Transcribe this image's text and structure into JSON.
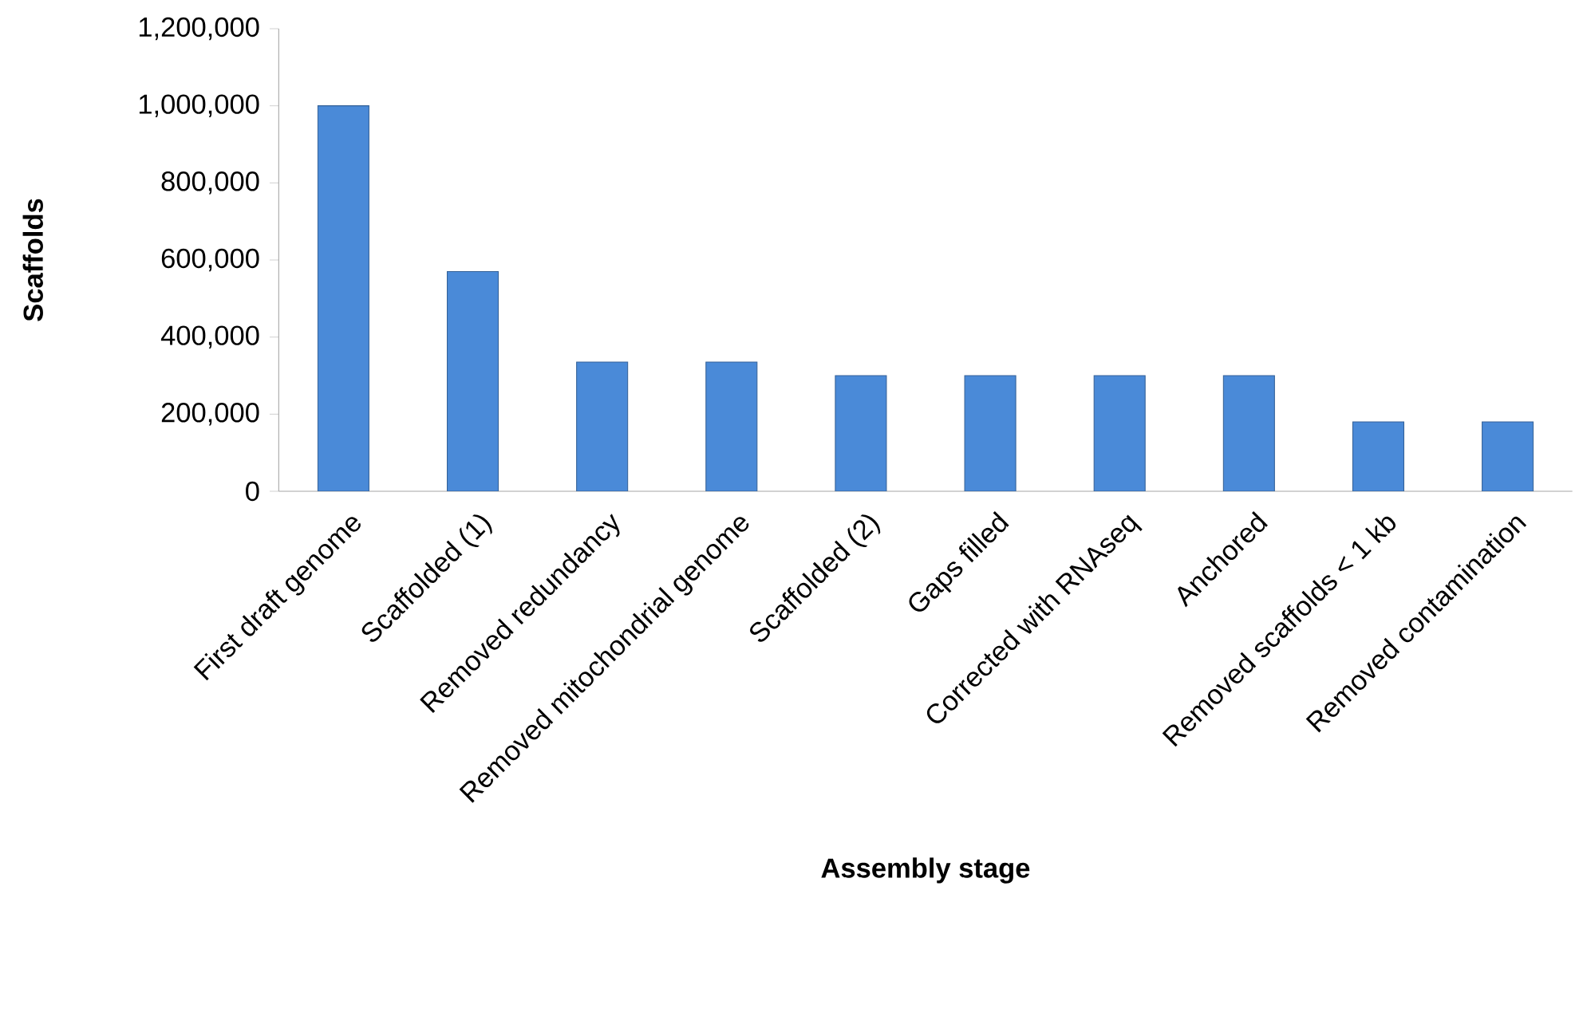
{
  "chart_data": {
    "type": "bar",
    "xlabel": "Assembly stage",
    "ylabel": "Scaffolds",
    "categories": [
      "First draft genome",
      "Scaffolded (1)",
      "Removed redundancy",
      "Removed mitochondrial genome",
      "Scaffolded (2)",
      "Gaps filled",
      "Corrected with RNAseq",
      "Anchored",
      "Removed scaffolds < 1 kb",
      "Removed contamination"
    ],
    "values": [
      1000000,
      570000,
      335000,
      335000,
      300000,
      300000,
      300000,
      300000,
      180000,
      180000
    ],
    "color": "#4a8ad8",
    "ylim": [
      0,
      1200000
    ],
    "yticks": [
      {
        "value": 0,
        "label": "0"
      },
      {
        "value": 200000,
        "label": "200,000"
      },
      {
        "value": 400000,
        "label": "400,000"
      },
      {
        "value": 600000,
        "label": "600,000"
      },
      {
        "value": 800000,
        "label": "800,000"
      },
      {
        "value": 1000000,
        "label": "1,000,000"
      },
      {
        "value": 1200000,
        "label": "1,200,000"
      }
    ]
  }
}
